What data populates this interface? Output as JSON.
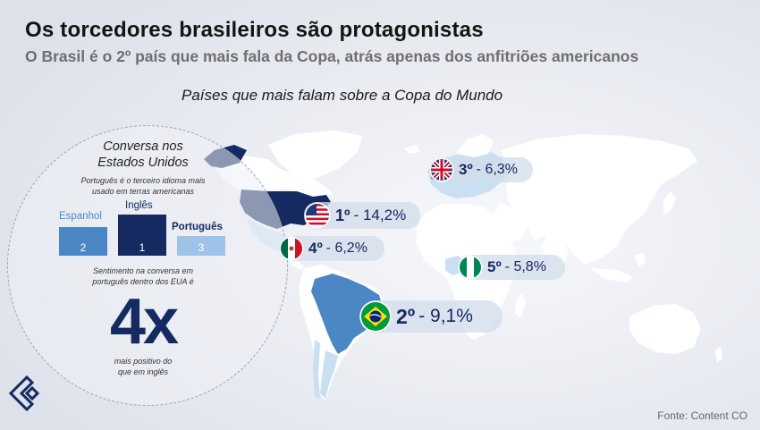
{
  "header": {
    "title": "Os torcedores brasileiros são protagonistas",
    "subtitle": "O Brasil é o 2º país que mais fala da Copa, atrás apenas dos anfitriões americanos"
  },
  "chart_title": "Países que mais falam sobre a Copa do Mundo",
  "countries": [
    {
      "rank": "1º",
      "pct": "- 14,2%",
      "flag": "usa-flag-icon"
    },
    {
      "rank": "2º",
      "pct": "- 9,1%",
      "flag": "brazil-flag-icon"
    },
    {
      "rank": "3º",
      "pct": "- 6,3%",
      "flag": "uk-flag-icon"
    },
    {
      "rank": "4º",
      "pct": "- 6,2%",
      "flag": "mexico-flag-icon"
    },
    {
      "rank": "5º",
      "pct": "- 5,8%",
      "flag": "nigeria-flag-icon"
    }
  ],
  "us_panel": {
    "title_line1": "Conversa nos",
    "title_line2": "Estados Unidos",
    "note_line1": "Português é o terceiro idioma mais",
    "note_line2": "usado em terras americanas",
    "languages": [
      {
        "name": "Espanhol",
        "position": "2",
        "color": "#4a87c4"
      },
      {
        "name": "Inglês",
        "position": "1",
        "color": "#142a60"
      },
      {
        "name": "Português",
        "position": "3",
        "color": "#9ec3e8"
      }
    ],
    "sentiment_line1": "Sentimento na conversa em",
    "sentiment_line2": "português dentro dos EUA é",
    "big_value": "4x",
    "after_line1": "mais positivo do",
    "after_line2": "que em inglês"
  },
  "source": "Fonte: Content CO",
  "colors": {
    "dark_navy": "#142a60",
    "brazil": "#4a87c4",
    "light_country": "#c9dff2",
    "land": "#ffffff",
    "background": "#eef0f5"
  }
}
